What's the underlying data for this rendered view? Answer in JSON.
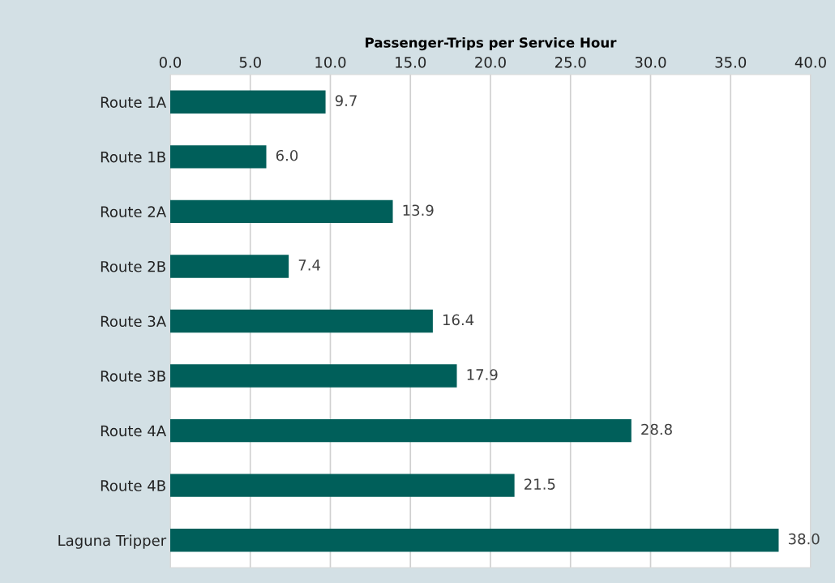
{
  "chart_data": {
    "type": "bar",
    "orientation": "horizontal",
    "xlabel": "Passenger-Trips per Service Hour",
    "categories": [
      "Route 1A",
      "Route 1B",
      "Route 2A",
      "Route 2B",
      "Route 3A",
      "Route 3B",
      "Route 4A",
      "Route 4B",
      "Laguna Tripper"
    ],
    "values": [
      9.7,
      6.0,
      13.9,
      7.4,
      16.4,
      17.9,
      28.8,
      21.5,
      38.0
    ],
    "color": "#005f5a",
    "xlim": [
      0,
      40
    ],
    "xticks": [
      {
        "value": 0,
        "label": "0.0"
      },
      {
        "value": 5,
        "label": "5.0"
      },
      {
        "value": 10,
        "label": "10.0"
      },
      {
        "value": 15,
        "label": "15.0"
      },
      {
        "value": 20,
        "label": "20.0"
      },
      {
        "value": 25,
        "label": "25.0"
      },
      {
        "value": 30,
        "label": "30.0"
      },
      {
        "value": 35,
        "label": "35.0"
      },
      {
        "value": 40,
        "label": "40.0"
      }
    ],
    "value_labels": [
      "9.7",
      "6.0",
      "13.9",
      "7.4",
      "16.4",
      "17.9",
      "28.8",
      "21.5",
      "38.0"
    ],
    "grid": "x"
  }
}
